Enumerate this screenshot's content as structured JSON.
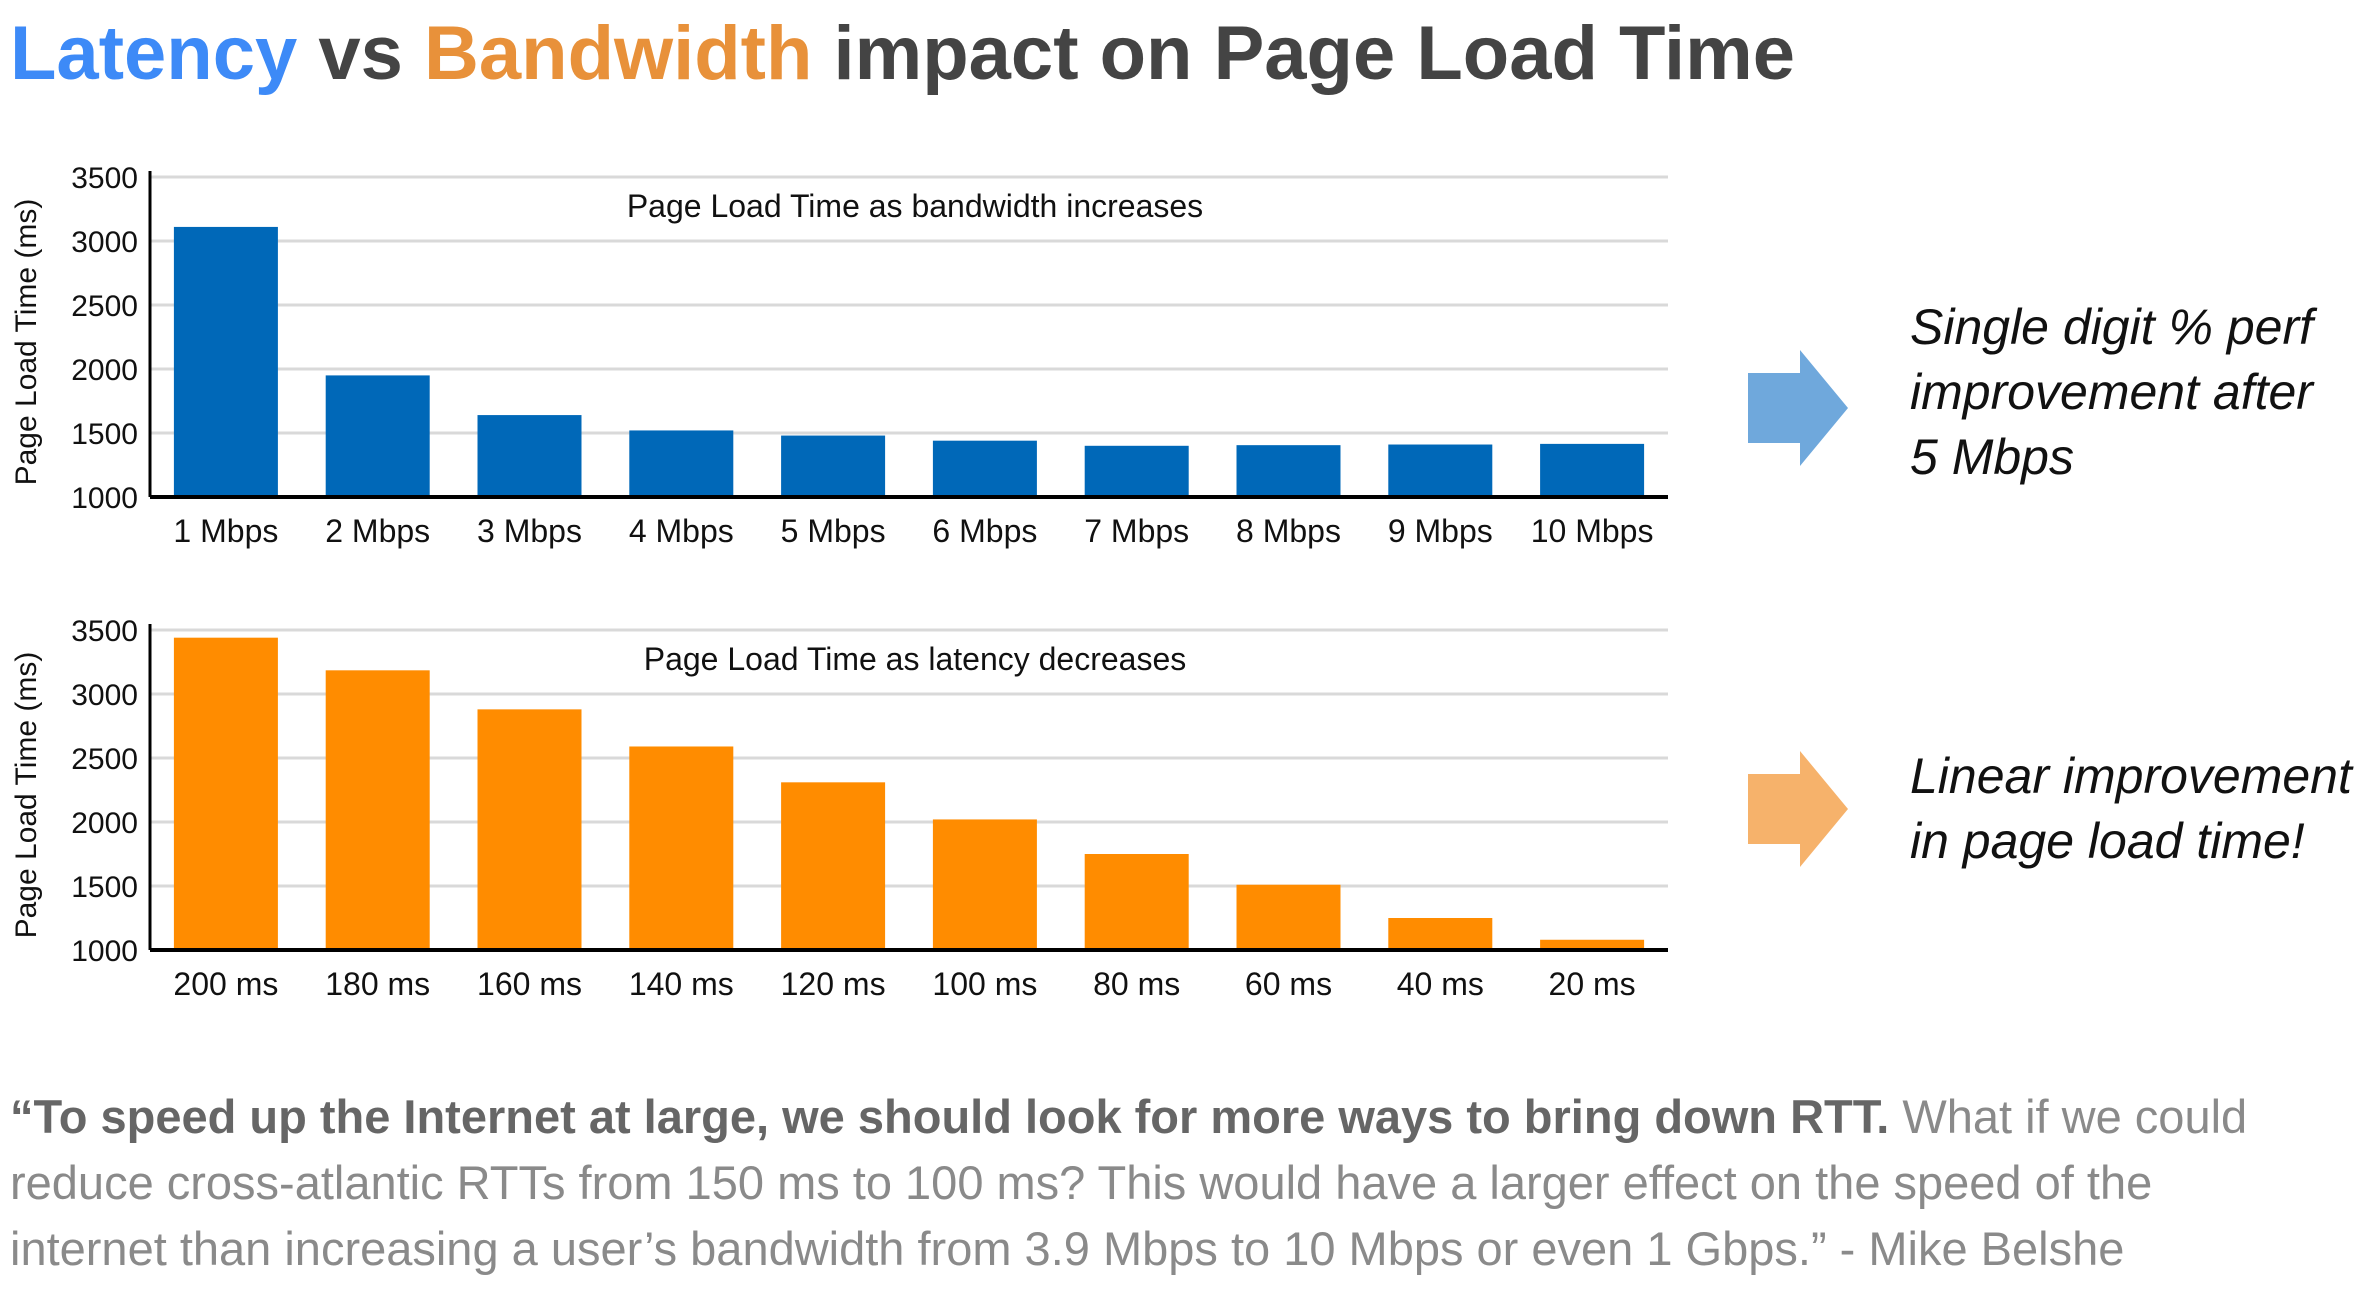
{
  "title": {
    "latency": "Latency",
    "vs": "vs",
    "bandwidth": "Bandwidth",
    "rest": "impact on Page Load Time"
  },
  "colors": {
    "latency": "#3d8af7",
    "bandwidth": "#e8913a",
    "title_text": "#444444",
    "bar_blue": "#0068b8",
    "bar_orange": "#ff8c00",
    "arrow_blue": "#6fa8dc",
    "arrow_orange": "#f6b26b",
    "grid": "#d9d9d9",
    "axis": "#000000",
    "quote_text": "#8a8a8a",
    "quote_bold": "#666666"
  },
  "callouts": {
    "top": {
      "line1": "Single digit % perf",
      "line2": "improvement after",
      "line3": "5 Mbps"
    },
    "bottom": {
      "line1": "Linear improvement",
      "line2": "in page load time!"
    }
  },
  "quote": {
    "bold": "“To speed up the Internet at large, we should look for more ways to bring down RTT.",
    "line1_rest": " What if we could",
    "line2": "reduce cross-atlantic RTTs from 150 ms to 100 ms? This would have a larger effect on the speed of the",
    "line3": "internet than increasing a user’s bandwidth from 3.9 Mbps to 10 Mbps or even 1 Gbps.” - Mike Belshe"
  },
  "chart_data": [
    {
      "type": "bar",
      "title": "Page Load Time as bandwidth increases",
      "xlabel": "",
      "ylabel": "Page Load Time (ms)",
      "ylim": [
        1000,
        3500
      ],
      "yticks": [
        1000,
        1500,
        2000,
        2500,
        3000,
        3500
      ],
      "grid": true,
      "color": "#0068b8",
      "categories": [
        "1 Mbps",
        "2 Mbps",
        "3 Mbps",
        "4 Mbps",
        "5 Mbps",
        "6 Mbps",
        "7 Mbps",
        "8 Mbps",
        "9 Mbps",
        "10 Mbps"
      ],
      "values": [
        3110,
        1950,
        1640,
        1520,
        1480,
        1440,
        1400,
        1405,
        1410,
        1415
      ]
    },
    {
      "type": "bar",
      "title": "Page Load Time as latency decreases",
      "xlabel": "",
      "ylabel": "Page Load Time (ms)",
      "ylim": [
        1000,
        3500
      ],
      "yticks": [
        1000,
        1500,
        2000,
        2500,
        3000,
        3500
      ],
      "grid": true,
      "color": "#ff8c00",
      "categories": [
        "200 ms",
        "180 ms",
        "160 ms",
        "140 ms",
        "120 ms",
        "100 ms",
        "80 ms",
        "60 ms",
        "40 ms",
        "20 ms"
      ],
      "values": [
        3440,
        3185,
        2880,
        2590,
        2310,
        2020,
        1750,
        1510,
        1250,
        1080
      ]
    }
  ]
}
